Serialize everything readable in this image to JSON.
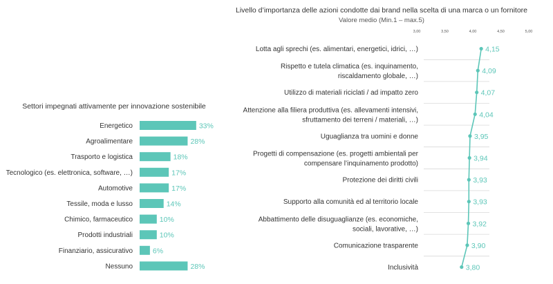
{
  "colors": {
    "teal": "#5cc6b8",
    "text": "#333333",
    "grid": "#dddddd"
  },
  "chart_data": [
    {
      "type": "bar",
      "orientation": "horizontal",
      "title": "Settori impegnati attivamente per innovazione sostenibile",
      "categories": [
        "Energetico",
        "Agroalimentare",
        "Trasporto e logistica",
        "Tecnologico (es. elettronica, software, …)",
        "Automotive",
        "Tessile, moda e lusso",
        "Chimico, farmaceutico",
        "Prodotti industriali",
        "Finanziario, assicurativo",
        "Nessuno"
      ],
      "values": [
        33,
        28,
        18,
        17,
        17,
        14,
        10,
        10,
        6,
        28
      ],
      "value_labels": [
        "33%",
        "28%",
        "18%",
        "17%",
        "17%",
        "14%",
        "10%",
        "10%",
        "6%",
        "28%"
      ],
      "xlim": [
        0,
        100
      ],
      "grid": false
    },
    {
      "type": "line",
      "title": "Livello d’importanza delle azioni condotte dai brand nella scelta di una marca o un fornitore",
      "subtitle": "Valore medio (Min.1 – max.5)",
      "categories": [
        [
          "Lotta agli sprechi (es. alimentari, energetici, idrici, …)"
        ],
        [
          "Rispetto e tutela climatica (es. inquinamento,",
          "riscaldamento globale, …)"
        ],
        [
          "Utilizzo di materiali riciclati / ad impatto zero"
        ],
        [
          "Attenzione alla filiera produttiva (es. allevamenti intensivi,",
          "sfruttamento dei terreni / materiali, …)"
        ],
        [
          "Uguaglianza tra uomini e donne"
        ],
        [
          "Progetti di compensazione (es. progetti ambientali per",
          "compensare l’inquinamento prodotto)"
        ],
        [
          "Protezione dei diritti civili"
        ],
        [
          "Supporto alla comunità ed al territorio locale"
        ],
        [
          "Abbattimento delle disuguaglianze (es. economiche,",
          "sociali, lavorative, …)"
        ],
        [
          "Comunicazione trasparente"
        ],
        [
          "Inclusività"
        ]
      ],
      "values": [
        4.15,
        4.09,
        4.07,
        4.04,
        3.95,
        3.94,
        3.93,
        3.93,
        3.92,
        3.9,
        3.8
      ],
      "value_labels": [
        "4,15",
        "4,09",
        "4,07",
        "4,04",
        "3,95",
        "3,94",
        "3,93",
        "3,93",
        "3,92",
        "3,90",
        "3,80"
      ],
      "xlim": [
        3.0,
        5.0
      ],
      "xticks": [
        3.0,
        3.5,
        4.0,
        4.5,
        5.0
      ],
      "xtick_labels": [
        "3,00",
        "3,50",
        "4,00",
        "4,50",
        "5,00"
      ],
      "grid": false
    }
  ]
}
